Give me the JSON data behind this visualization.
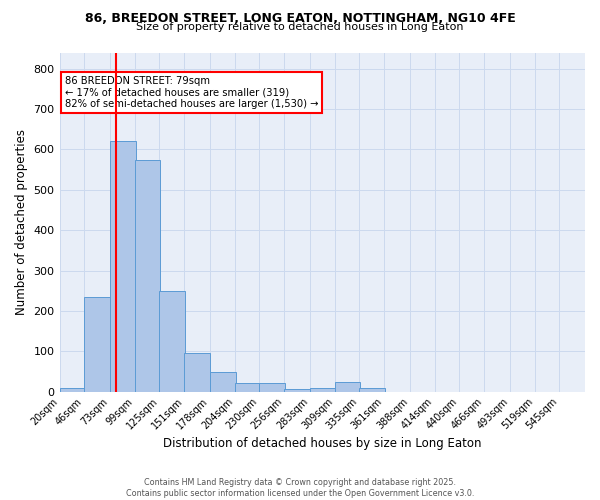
{
  "title_line1": "86, BREEDON STREET, LONG EATON, NOTTINGHAM, NG10 4FE",
  "title_line2": "Size of property relative to detached houses in Long Eaton",
  "xlabel": "Distribution of detached houses by size in Long Eaton",
  "ylabel": "Number of detached properties",
  "bin_labels": [
    "20sqm",
    "46sqm",
    "73sqm",
    "99sqm",
    "125sqm",
    "151sqm",
    "178sqm",
    "204sqm",
    "230sqm",
    "256sqm",
    "283sqm",
    "309sqm",
    "335sqm",
    "361sqm",
    "388sqm",
    "414sqm",
    "440sqm",
    "466sqm",
    "493sqm",
    "519sqm",
    "545sqm"
  ],
  "bar_heights": [
    10,
    235,
    620,
    575,
    250,
    97,
    48,
    22,
    22,
    7,
    8,
    25,
    8,
    0,
    0,
    0,
    0,
    0,
    0,
    0,
    0
  ],
  "bar_color": "#aec6e8",
  "bar_edge_color": "#5b9bd5",
  "grid_color": "#ccd9ee",
  "background_color": "#e8eef8",
  "vline_color": "red",
  "vline_x_bin": 2,
  "annotation_text": "86 BREEDON STREET: 79sqm\n← 17% of detached houses are smaller (319)\n82% of semi-detached houses are larger (1,530) →",
  "annotation_box_color": "white",
  "annotation_box_edge": "red",
  "ylim_min": 0,
  "ylim_max": 840,
  "bin_width": 27,
  "yticks": [
    0,
    100,
    200,
    300,
    400,
    500,
    600,
    700,
    800
  ],
  "footnote": "Contains HM Land Registry data © Crown copyright and database right 2025.\nContains public sector information licensed under the Open Government Licence v3.0."
}
